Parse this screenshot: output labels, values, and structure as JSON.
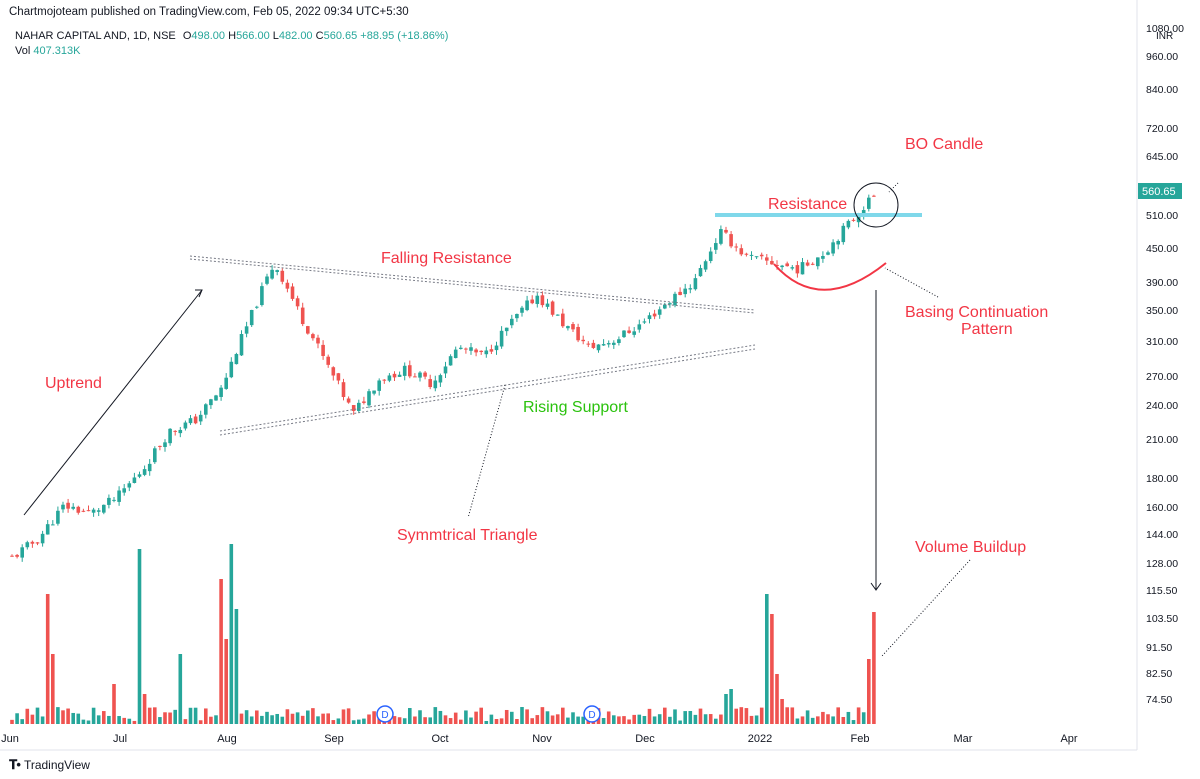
{
  "header": {
    "publisher": "Chartmojoteam published on TradingView.com, Feb 05, 2022 09:34 UTC+5:30",
    "symbol": "NAHAR CAPITAL AND, 1D, NSE",
    "ohlc": {
      "o_label": "O",
      "o": "498.00",
      "h_label": "H",
      "h": "566.00",
      "l_label": "L",
      "l": "482.00",
      "c_label": "C",
      "c": "560.65",
      "change": "+88.95 (+18.86%)"
    },
    "vol_label": "Vol",
    "vol_value": "407.313K"
  },
  "footer": {
    "brand": "TradingView",
    "logo_icon": "tradingview-logo-icon"
  },
  "colors": {
    "up": "#26a69a",
    "down": "#ef5350",
    "annotation": "#f23645",
    "support_text": "#2bc20e",
    "resistance_line": "#7fd8ea"
  },
  "chart_data": {
    "type": "candlestick",
    "scale": "log",
    "currency_label": "INR",
    "price_axis_ticks": [
      "1080.00",
      "960.00",
      "840.00",
      "720.00",
      "645.00",
      "560.65",
      "510.00",
      "450.00",
      "390.00",
      "350.00",
      "310.00",
      "270.00",
      "240.00",
      "210.00",
      "180.00",
      "160.00",
      "144.00",
      "128.00",
      "115.50",
      "103.50",
      "91.50",
      "82.50",
      "74.50"
    ],
    "last_price": "560.65",
    "time_axis_labels": [
      "Jun",
      "Jul",
      "Aug",
      "Sep",
      "Oct",
      "Nov",
      "Dec",
      "2022",
      "Feb",
      "Mar",
      "Apr"
    ],
    "dividend_markers": [
      {
        "label": "D",
        "month": "Sep"
      },
      {
        "label": "D",
        "month": "Nov"
      }
    ],
    "price_path": [
      [
        "Jun 01",
        130
      ],
      [
        "Jun 08",
        140
      ],
      [
        "Jun 15",
        160
      ],
      [
        "Jun 22",
        155
      ],
      [
        "Jun 29",
        165
      ],
      [
        "Jul 06",
        185
      ],
      [
        "Jul 13",
        215
      ],
      [
        "Jul 20",
        225
      ],
      [
        "Jul 27",
        255
      ],
      [
        "Aug 03",
        330
      ],
      [
        "Aug 05",
        420
      ],
      [
        "Aug 10",
        340
      ],
      [
        "Aug 17",
        280
      ],
      [
        "Aug 24",
        230
      ],
      [
        "Aug 31",
        265
      ],
      [
        "Sep 14",
        275
      ],
      [
        "Sep 28",
        260
      ],
      [
        "Oct 12",
        300
      ],
      [
        "Oct 26",
        290
      ],
      [
        "Nov 03",
        330
      ],
      [
        "Nov 10",
        370
      ],
      [
        "Nov 24",
        330
      ],
      [
        "Dec 01",
        300
      ],
      [
        "Dec 08",
        310
      ],
      [
        "Dec 22",
        330
      ],
      [
        "Dec 29",
        360
      ],
      [
        "Jan 03",
        390
      ],
      [
        "Jan 07",
        475
      ],
      [
        "Jan 14",
        430
      ],
      [
        "Jan 21",
        420
      ],
      [
        "Jan 28",
        410
      ],
      [
        "Feb 01",
        440
      ],
      [
        "Feb 03",
        498
      ],
      [
        "Feb 04",
        560.65
      ]
    ],
    "volume_bars": "relative heights; spikes at early Jun, early Jul, early Aug, early Jan and Feb 04",
    "annotations": {
      "uptrend": "Uptrend",
      "falling_resistance": "Falling Resistance",
      "rising_support": "Rising Support",
      "symmetrical_triangle": "Symmtrical Triangle",
      "resistance": "Resistance",
      "bo_candle": "BO Candle",
      "basing_pattern_line1": "Basing Continuation",
      "basing_pattern_line2": "Pattern",
      "volume_buildup": "Volume Buildup"
    }
  }
}
